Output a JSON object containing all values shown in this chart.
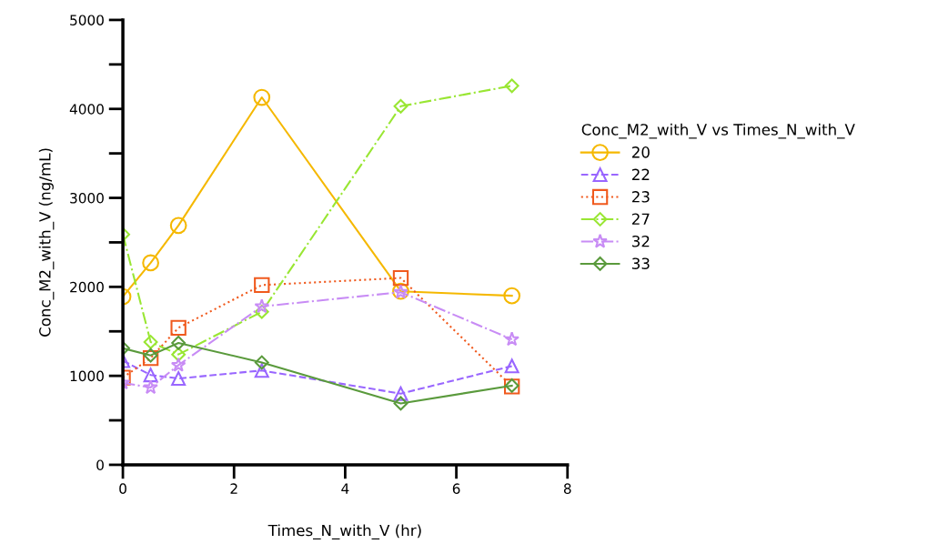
{
  "chart_data": {
    "type": "line",
    "xlabel": "Times_N_with_V (hr)",
    "ylabel": "Conc_M2_with_V (ng/mL)",
    "legend_title": "Conc_M2_with_V vs Times_N_with_V",
    "legend": "right",
    "x": [
      0,
      0.5,
      1,
      2.5,
      5,
      7
    ],
    "xlim": [
      0,
      8
    ],
    "xticks": [
      0,
      2,
      4,
      6,
      8
    ],
    "ylim": [
      0,
      5000
    ],
    "yticks": [
      0,
      {
        "value": 500,
        "label": null
      },
      1000,
      {
        "value": 1500,
        "label": null
      },
      2000,
      {
        "value": 2500,
        "label": null
      },
      3000,
      {
        "value": 3500,
        "label": null
      },
      4000,
      {
        "value": 4500,
        "label": null
      },
      5000
    ],
    "grid": false,
    "series": [
      {
        "name": "20",
        "color": "#f5b800",
        "marker": "circle",
        "line_style": "solid",
        "values": [
          1890,
          2270,
          2690,
          4130,
          1950,
          1900
        ]
      },
      {
        "name": "22",
        "color": "#9966ff",
        "marker": "triangle",
        "line_style": "dashed",
        "values": [
          1170,
          1010,
          970,
          1060,
          800,
          1110
        ]
      },
      {
        "name": "23",
        "color": "#f05a1e",
        "marker": "square",
        "line_style": "dotted",
        "values": [
          980,
          1200,
          1540,
          2020,
          2100,
          880
        ]
      },
      {
        "name": "27",
        "color": "#99e633",
        "marker": "diamond",
        "line_style": "dashdot",
        "values": [
          2590,
          1380,
          1240,
          1720,
          4030,
          4260
        ]
      },
      {
        "name": "32",
        "color": "#c88cf5",
        "marker": "star",
        "line_style": "dashdot",
        "values": [
          920,
          870,
          1120,
          1780,
          1940,
          1410
        ]
      },
      {
        "name": "33",
        "color": "#5a9a3c",
        "marker": "diamond",
        "line_style": "solid",
        "values": [
          1310,
          1230,
          1370,
          1150,
          690,
          890
        ]
      }
    ]
  }
}
